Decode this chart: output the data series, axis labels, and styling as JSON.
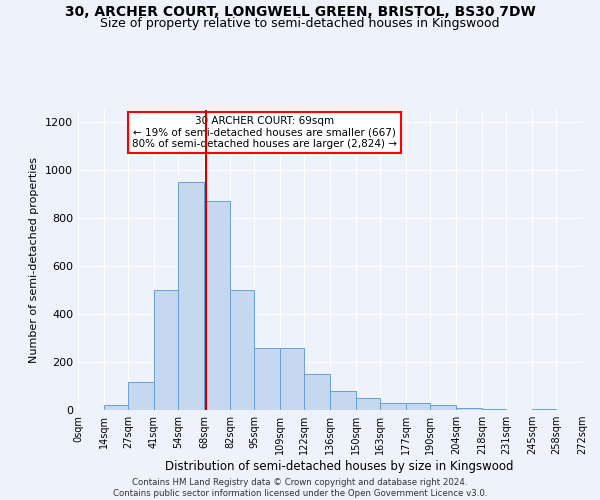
{
  "title_line1": "30, ARCHER COURT, LONGWELL GREEN, BRISTOL, BS30 7DW",
  "title_line2": "Size of property relative to semi-detached houses in Kingswood",
  "xlabel": "Distribution of semi-detached houses by size in Kingswood",
  "ylabel": "Number of semi-detached properties",
  "footer": "Contains HM Land Registry data © Crown copyright and database right 2024.\nContains public sector information licensed under the Open Government Licence v3.0.",
  "annotation_title": "30 ARCHER COURT: 69sqm",
  "annotation_line1": "← 19% of semi-detached houses are smaller (667)",
  "annotation_line2": "80% of semi-detached houses are larger (2,824) →",
  "property_size": 69,
  "bin_edges": [
    0,
    14,
    27,
    41,
    54,
    68,
    82,
    95,
    109,
    122,
    136,
    150,
    163,
    177,
    190,
    204,
    218,
    231,
    245,
    258,
    272
  ],
  "bin_labels": [
    "0sqm",
    "14sqm",
    "27sqm",
    "41sqm",
    "54sqm",
    "68sqm",
    "82sqm",
    "95sqm",
    "109sqm",
    "122sqm",
    "136sqm",
    "150sqm",
    "163sqm",
    "177sqm",
    "190sqm",
    "204sqm",
    "218sqm",
    "231sqm",
    "245sqm",
    "258sqm",
    "272sqm"
  ],
  "bar_heights": [
    2,
    20,
    115,
    500,
    950,
    870,
    500,
    260,
    260,
    150,
    80,
    50,
    30,
    30,
    20,
    10,
    5,
    2,
    5,
    2
  ],
  "bar_color": "#c5d8f0",
  "bar_edge_color": "#6a9fd8",
  "vline_color": "#cc0000",
  "background_color": "#eef2fa",
  "ylim": [
    0,
    1250
  ],
  "yticks": [
    0,
    200,
    400,
    600,
    800,
    1000,
    1200
  ],
  "grid_color": "#ffffff"
}
